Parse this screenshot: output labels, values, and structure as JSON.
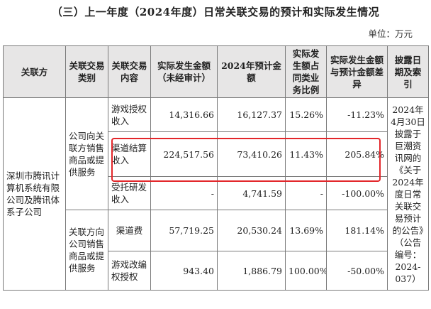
{
  "title": "（三）上一年度（2024年度）日常关联交易的预计和实际发生情况",
  "unit": "单位：万元",
  "headers": {
    "party": "关联方",
    "category": "关联交易类别",
    "content": "关联交易内容",
    "actual": "实际发生金额（未经审计）",
    "forecast": "2024年预计金额",
    "ratio": "实际发生额占同类业务比例",
    "diff": "实际发生金额与预计金额差异",
    "disclosure": "披露日期及索引"
  },
  "party": "深圳市腾讯计算机系统有限公司及腾讯体系子公司",
  "categories": {
    "sell": "公司向关联方销售商品或提供服务",
    "buy": "关联方向公司销售商品或提供服务"
  },
  "disclosure": "2024年4月30日披露于巨潮资讯网的《关于2024年度日常关联交易预计的公告》（公告编号：2024-037）",
  "rows": [
    {
      "content": "游戏授权收入",
      "actual": "14,316.66",
      "forecast": "16,127.37",
      "ratio": "15.26%",
      "diff": "-11.23%"
    },
    {
      "content": "渠道结算收入",
      "actual": "224,517.56",
      "forecast": "73,410.26",
      "ratio": "11.43%",
      "diff": "205.84%"
    },
    {
      "content": "受托研发收入",
      "actual": "-",
      "forecast": "4,741.59",
      "ratio": "-",
      "diff": "-100.00%"
    },
    {
      "content": "渠道费",
      "actual": "57,719.25",
      "forecast": "20,530.24",
      "ratio": "13.69%",
      "diff": "181.14%"
    },
    {
      "content": "游戏改编权授权",
      "actual": "943.40",
      "forecast": "1,886.79",
      "ratio": "100.00%",
      "diff": "-50.00%"
    }
  ]
}
